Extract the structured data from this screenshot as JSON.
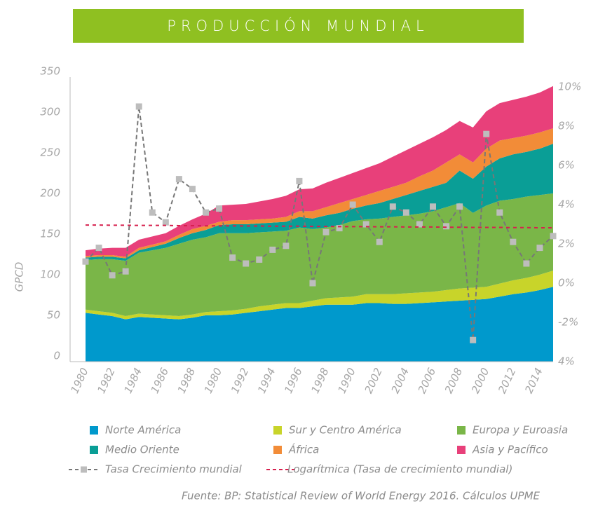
{
  "chart_data": {
    "type": "stacked_area",
    "title": "PRODUCCIÓN MUNDIAL",
    "y_label": "GPCD",
    "source": "Fuente: BP: Statistical Review of World Energy 2016. Cálculos UPME",
    "categories": [
      "1980",
      null,
      "1982",
      null,
      "1984",
      null,
      "1986",
      null,
      "1988",
      null,
      "1980",
      null,
      "1992",
      null,
      "1994",
      null,
      "1996",
      null,
      "1998",
      null,
      "1990",
      null,
      "2002",
      null,
      "2004",
      null,
      "2006",
      null,
      "2008",
      null,
      "2000",
      null,
      "2012",
      null,
      "2014",
      null
    ],
    "ylim": [
      0,
      350
    ],
    "yticks": [
      0,
      50,
      100,
      150,
      200,
      250,
      300,
      350
    ],
    "y2lim": [
      -4,
      10
    ],
    "y2ticks": [
      {
        "value": -4,
        "label": "4%"
      },
      {
        "value": -2,
        "label": "-2%"
      },
      {
        "value": 0,
        "label": "0%"
      },
      {
        "value": 2,
        "label": "2%"
      },
      {
        "value": 4,
        "label": "4%"
      },
      {
        "value": 6,
        "label": "6%"
      },
      {
        "value": 8,
        "label": "8%"
      },
      {
        "value": 10,
        "label": "10%"
      }
    ],
    "series": [
      {
        "name": "Norte América",
        "color": "#0099cc",
        "values": [
          60,
          58,
          56,
          52,
          55,
          54,
          53,
          52,
          54,
          57,
          57,
          58,
          60,
          62,
          64,
          66,
          66,
          68,
          70,
          70,
          70,
          72,
          72,
          71,
          71,
          72,
          73,
          74,
          75,
          76,
          77,
          80,
          83,
          85,
          88,
          92
        ]
      },
      {
        "name": "Sur y Centro América",
        "color": "#c8d42a",
        "values": [
          4,
          4,
          4,
          4,
          4,
          4,
          4,
          4,
          4,
          4,
          5,
          5,
          5,
          6,
          6,
          6,
          6,
          7,
          8,
          9,
          10,
          11,
          11,
          12,
          13,
          13,
          13,
          14,
          15,
          15,
          15,
          16,
          17,
          18,
          19,
          20
        ]
      },
      {
        "name": "Europa y Euroasia",
        "color": "#7ab648",
        "values": [
          61,
          64,
          66,
          68,
          75,
          79,
          83,
          89,
          92,
          92,
          96,
          95,
          93,
          91,
          90,
          89,
          93,
          88,
          87,
          89,
          93,
          92,
          93,
          95,
          96,
          97,
          99,
          102,
          105,
          92,
          100,
          102,
          100,
          100,
          98,
          95
        ]
      },
      {
        "name": "Medio Oriente",
        "color": "#0a9e96",
        "values": [
          3,
          3,
          3,
          3,
          3,
          4,
          5,
          7,
          8,
          9,
          10,
          11,
          11,
          11,
          11,
          11,
          13,
          13,
          15,
          15,
          15,
          17,
          19,
          22,
          25,
          28,
          30,
          30,
          40,
          42,
          48,
          52,
          55,
          55,
          57,
          61
        ]
      },
      {
        "name": "África",
        "color": "#f28c38",
        "values": [
          2,
          2,
          2,
          2,
          3,
          3,
          3,
          4,
          5,
          5,
          4,
          5,
          5,
          5,
          5,
          6,
          7,
          9,
          10,
          12,
          12,
          13,
          15,
          15,
          15,
          18,
          20,
          25,
          20,
          20,
          22,
          22,
          20,
          20,
          20,
          19
        ]
      },
      {
        "name": "Asia y Pacífico",
        "color": "#e8407a",
        "values": [
          7,
          8,
          9,
          11,
          10,
          10,
          10,
          11,
          12,
          15,
          20,
          19,
          20,
          22,
          24,
          26,
          27,
          28,
          30,
          31,
          32,
          33,
          34,
          37,
          40,
          40,
          41,
          40,
          41,
          43,
          46,
          46,
          47,
          48,
          49,
          52
        ]
      },
      {
        "name": "Tasa Crecimiento mundial",
        "color": "#777777",
        "marker_color": "#bdbdbd",
        "axis": "y2",
        "marker": "square",
        "values": [
          1.1,
          1.8,
          0.4,
          0.6,
          9.0,
          3.6,
          3.1,
          5.3,
          4.8,
          3.6,
          3.8,
          1.3,
          1.0,
          1.2,
          1.7,
          1.9,
          5.2,
          0.0,
          2.6,
          2.8,
          4.0,
          3.0,
          2.1,
          3.9,
          3.6,
          3.0,
          3.9,
          2.9,
          3.9,
          -2.9,
          7.6,
          3.6,
          2.1,
          1.0,
          1.8,
          2.4
        ]
      },
      {
        "name": "Logarítmica (Tasa de crecimiento mundial)",
        "color": "#d6204e",
        "axis": "y2",
        "values": [
          2.96,
          2.96,
          2.95,
          2.95,
          2.94,
          2.94,
          2.94,
          2.93,
          2.93,
          2.92,
          2.92,
          2.92,
          2.91,
          2.91,
          2.9,
          2.9,
          2.9,
          2.89,
          2.89,
          2.88,
          2.88,
          2.88,
          2.87,
          2.87,
          2.86,
          2.86,
          2.86,
          2.85,
          2.85,
          2.84,
          2.84,
          2.84,
          2.83,
          2.83,
          2.82,
          2.82
        ]
      }
    ]
  }
}
